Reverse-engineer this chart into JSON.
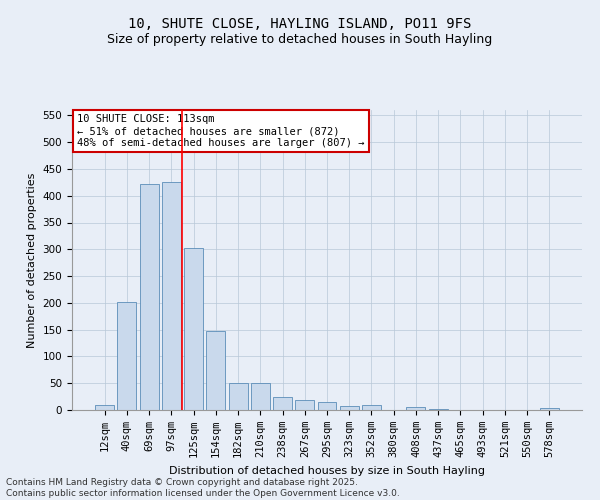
{
  "title": "10, SHUTE CLOSE, HAYLING ISLAND, PO11 9FS",
  "subtitle": "Size of property relative to detached houses in South Hayling",
  "xlabel": "Distribution of detached houses by size in South Hayling",
  "ylabel": "Number of detached properties",
  "categories": [
    "12sqm",
    "40sqm",
    "69sqm",
    "97sqm",
    "125sqm",
    "154sqm",
    "182sqm",
    "210sqm",
    "238sqm",
    "267sqm",
    "295sqm",
    "323sqm",
    "352sqm",
    "380sqm",
    "408sqm",
    "437sqm",
    "465sqm",
    "493sqm",
    "521sqm",
    "550sqm",
    "578sqm"
  ],
  "values": [
    10,
    202,
    422,
    425,
    302,
    147,
    50,
    50,
    25,
    18,
    15,
    8,
    10,
    0,
    5,
    2,
    0,
    0,
    0,
    0,
    3
  ],
  "bar_color": "#c9d9ec",
  "bar_edge_color": "#5b8db8",
  "red_line_x": 3.5,
  "annotation_text": "10 SHUTE CLOSE: 113sqm\n← 51% of detached houses are smaller (872)\n48% of semi-detached houses are larger (807) →",
  "annotation_box_color": "#ffffff",
  "annotation_box_edge_color": "#cc0000",
  "ylim": [
    0,
    560
  ],
  "yticks": [
    0,
    50,
    100,
    150,
    200,
    250,
    300,
    350,
    400,
    450,
    500,
    550
  ],
  "background_color": "#e8eef7",
  "footer_line1": "Contains HM Land Registry data © Crown copyright and database right 2025.",
  "footer_line2": "Contains public sector information licensed under the Open Government Licence v3.0.",
  "title_fontsize": 10,
  "subtitle_fontsize": 9,
  "axis_label_fontsize": 8,
  "tick_fontsize": 7.5,
  "footer_fontsize": 6.5
}
